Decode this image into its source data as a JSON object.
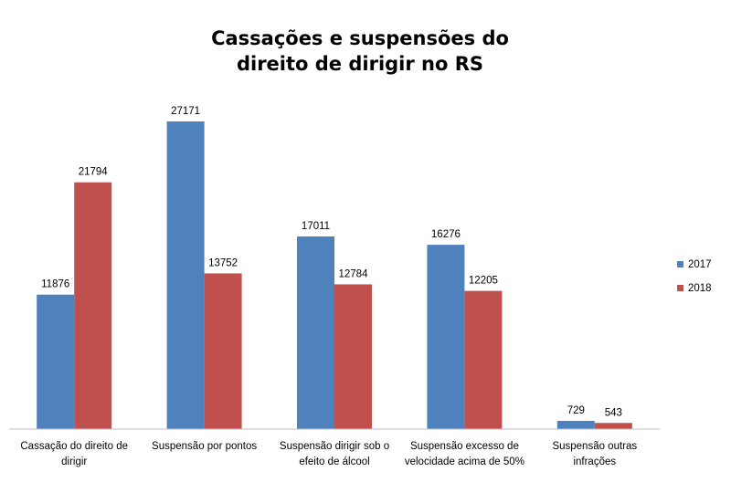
{
  "chart_data": {
    "type": "bar",
    "title_lines": [
      "Cassações e suspensões do",
      "direito de dirigir no RS"
    ],
    "categories": [
      [
        "Cassação do direito de",
        "dirigir"
      ],
      [
        "Suspensão por pontos"
      ],
      [
        "Suspensão dirigir sob o",
        "efeito de álcool"
      ],
      [
        "Suspensão excesso de",
        "velocidade acima de 50%"
      ],
      [
        "Suspensão outras",
        "infrações"
      ]
    ],
    "series": [
      {
        "name": "2017",
        "color": "#4F81BD",
        "values": [
          11876,
          27171,
          17011,
          16276,
          729
        ]
      },
      {
        "name": "2018",
        "color": "#C0504D",
        "values": [
          21794,
          13752,
          12784,
          12205,
          543
        ]
      }
    ],
    "ylim": [
      0,
      30000
    ],
    "grid": false,
    "legend_position": "right"
  }
}
